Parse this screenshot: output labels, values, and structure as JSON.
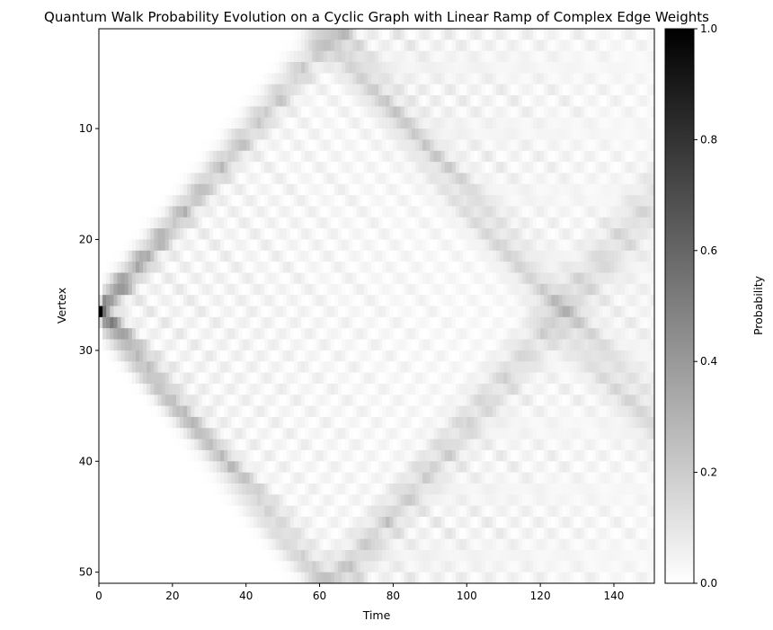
{
  "chart_data": {
    "type": "heatmap",
    "title": "Quantum Walk Probability Evolution on a Cyclic Graph with Linear Ramp of Complex Edge Weights",
    "xlabel": "Time",
    "ylabel": "Vertex",
    "xlim": [
      0,
      151
    ],
    "ylim": [
      51,
      1
    ],
    "x_ticks": [
      0,
      20,
      40,
      60,
      80,
      100,
      120,
      140
    ],
    "y_ticks": [
      10,
      20,
      30,
      40,
      50
    ],
    "n_vertices": 50,
    "time_steps": 151,
    "initial_vertex": 26.5,
    "peak_value": 1.0,
    "colormap": "Greys",
    "colorbar": {
      "label": "Probability",
      "range": [
        0.0,
        1.0
      ],
      "ticks": [
        "0.0",
        "0.2",
        "0.4",
        "0.6",
        "0.8",
        "1.0"
      ],
      "low_color": "#ffffff",
      "high_color": "#000000"
    }
  }
}
